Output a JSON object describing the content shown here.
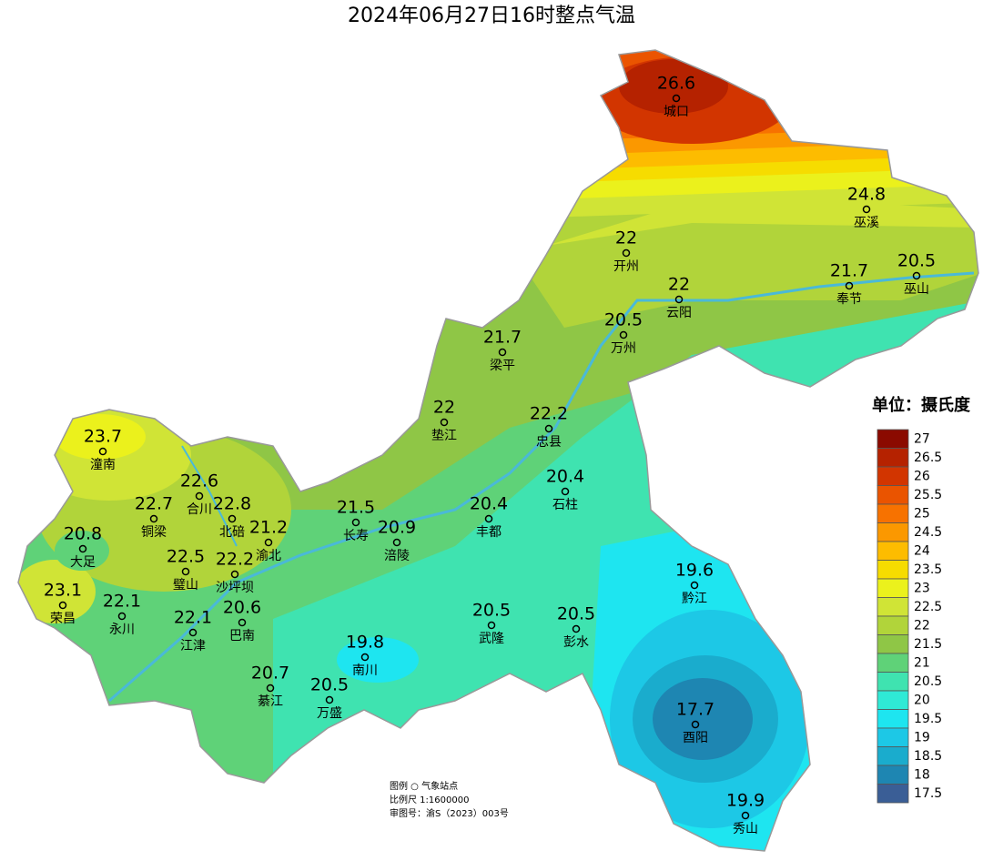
{
  "title": "2024年06月27日16时整点气温",
  "stations": [
    {
      "name": "城口",
      "value": 26.6
    },
    {
      "name": "巫溪",
      "value": 24.8
    },
    {
      "name": "开州",
      "value": 22
    },
    {
      "name": "巫山",
      "value": 20.5
    },
    {
      "name": "奉节",
      "value": 21.7
    },
    {
      "name": "云阳",
      "value": 22
    },
    {
      "name": "万州",
      "value": 20.5
    },
    {
      "name": "梁平",
      "value": 21.7
    },
    {
      "name": "垫江",
      "value": 22
    },
    {
      "name": "忠县",
      "value": 22.2
    },
    {
      "name": "潼南",
      "value": 23.7
    },
    {
      "name": "合川",
      "value": 22.6
    },
    {
      "name": "石柱",
      "value": 20.4
    },
    {
      "name": "铜梁",
      "value": 22.7
    },
    {
      "name": "北碚",
      "value": 22.8
    },
    {
      "name": "长寿",
      "value": 21.5
    },
    {
      "name": "丰都",
      "value": 20.4
    },
    {
      "name": "渝北",
      "value": 21.2
    },
    {
      "name": "涪陵",
      "value": 20.9
    },
    {
      "name": "大足",
      "value": 20.8
    },
    {
      "name": "璧山",
      "value": 22.5
    },
    {
      "name": "沙坪坝",
      "value": 22.2
    },
    {
      "name": "黔江",
      "value": 19.6
    },
    {
      "name": "荣昌",
      "value": 23.1
    },
    {
      "name": "永川",
      "value": 22.1
    },
    {
      "name": "巴南",
      "value": 20.6
    },
    {
      "name": "武隆",
      "value": 20.5
    },
    {
      "name": "彭水",
      "value": 20.5
    },
    {
      "name": "江津",
      "value": 22.1
    },
    {
      "name": "南川",
      "value": 19.8
    },
    {
      "name": "綦江",
      "value": 20.7
    },
    {
      "name": "万盛",
      "value": 20.5
    },
    {
      "name": "酉阳",
      "value": 17.7
    },
    {
      "name": "秀山",
      "value": 19.9
    }
  ],
  "legend": {
    "unit": "单位：摄氏度",
    "items": [
      {
        "value": 27,
        "color": "#8b0a00"
      },
      {
        "value": 26.5,
        "color": "#b52200"
      },
      {
        "value": 26,
        "color": "#d23500"
      },
      {
        "value": 25.5,
        "color": "#ea5400"
      },
      {
        "value": 25,
        "color": "#f77200"
      },
      {
        "value": 24.5,
        "color": "#fb9800"
      },
      {
        "value": 24,
        "color": "#fdbc00"
      },
      {
        "value": 23.5,
        "color": "#f6dc00"
      },
      {
        "value": 23,
        "color": "#ebf11c"
      },
      {
        "value": 22.5,
        "color": "#d0e436"
      },
      {
        "value": 22,
        "color": "#b1d43a"
      },
      {
        "value": 21.5,
        "color": "#8fc646"
      },
      {
        "value": 21,
        "color": "#5fd278"
      },
      {
        "value": 20.5,
        "color": "#3fe3b0"
      },
      {
        "value": 20,
        "color": "#2fead6"
      },
      {
        "value": 19.5,
        "color": "#1ee5f0"
      },
      {
        "value": 19,
        "color": "#1dc8e6"
      },
      {
        "value": 18.5,
        "color": "#1aaccd"
      },
      {
        "value": 18,
        "color": "#1e86b2"
      },
      {
        "value": 17.5,
        "color": "#3a5e96"
      }
    ]
  },
  "footer": {
    "legend_line": "图例  ○  气象站点",
    "scale": "比例尺   1:1600000",
    "approval": "审图号：渝S（2023）003号"
  }
}
